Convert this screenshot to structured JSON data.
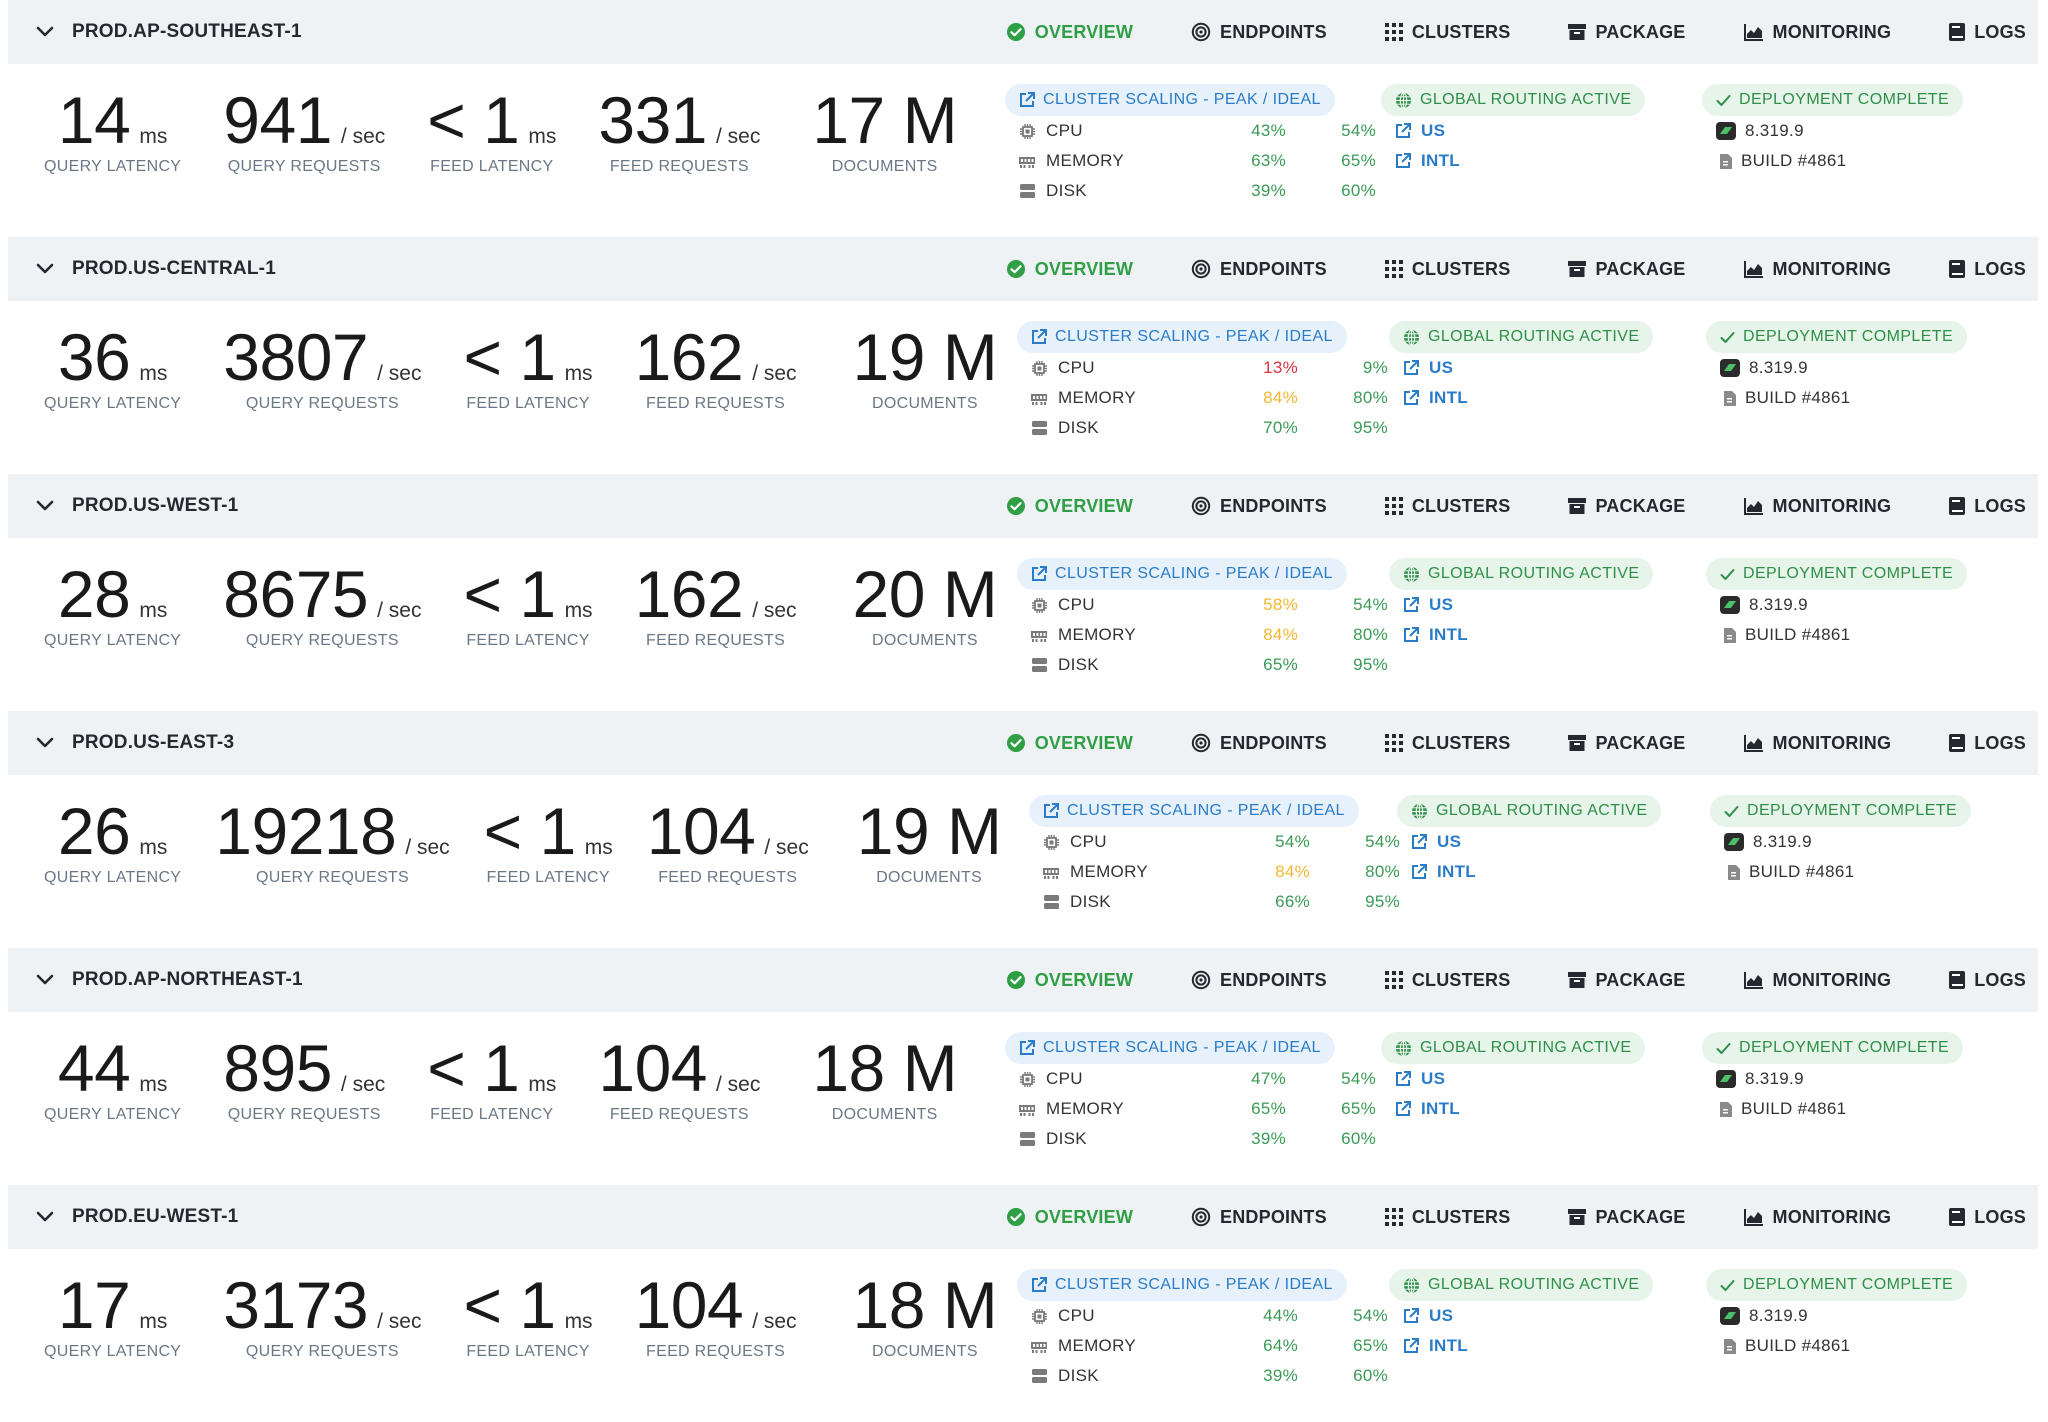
{
  "colors": {
    "accent_green": "#2f9e44",
    "link_blue": "#2a7cc8",
    "warn_red": "#d9363e",
    "warn_yellow": "#f5b630",
    "header_bg": "#eef2f5"
  },
  "tabs": [
    {
      "label": "OVERVIEW",
      "icon": "check-circle-icon"
    },
    {
      "label": "ENDPOINTS",
      "icon": "target-icon"
    },
    {
      "label": "CLUSTERS",
      "icon": "grid-icon"
    },
    {
      "label": "PACKAGE",
      "icon": "archive-icon"
    },
    {
      "label": "MONITORING",
      "icon": "area-chart-icon"
    },
    {
      "label": "LOGS",
      "icon": "book-icon"
    }
  ],
  "labels": {
    "query_latency": "QUERY LATENCY",
    "query_requests": "QUERY REQUESTS",
    "feed_latency": "FEED LATENCY",
    "feed_requests": "FEED REQUESTS",
    "documents": "DOCUMENTS",
    "unit_ms": "ms",
    "unit_sec": "/ sec",
    "scaling_chip": "CLUSTER SCALING - PEAK / IDEAL",
    "routing_chip": "GLOBAL ROUTING  ACTIVE",
    "deploy_chip": "DEPLOYMENT  COMPLETE",
    "cpu": "CPU",
    "memory": "MEMORY",
    "disk": "DISK",
    "link_us": "US",
    "link_intl": "INTL"
  },
  "deployments": [
    {
      "name": "PROD.AP-SOUTHEAST-1",
      "query_latency": "14",
      "query_requests": "941",
      "feed_latency": "< 1",
      "feed_requests": "331",
      "documents": "17 M",
      "cpu": {
        "peak": "43%",
        "peak_status": "g",
        "ideal": "54%"
      },
      "memory": {
        "peak": "63%",
        "peak_status": "g",
        "ideal": "65%"
      },
      "disk": {
        "peak": "39%",
        "peak_status": "g",
        "ideal": "60%"
      },
      "version": "8.319.9",
      "build": "BUILD #4861"
    },
    {
      "name": "PROD.US-CENTRAL-1",
      "query_latency": "36",
      "query_requests": "3807",
      "feed_latency": "< 1",
      "feed_requests": "162",
      "documents": "19 M",
      "cpu": {
        "peak": "13%",
        "peak_status": "r",
        "ideal": "9%"
      },
      "memory": {
        "peak": "84%",
        "peak_status": "y",
        "ideal": "80%"
      },
      "disk": {
        "peak": "70%",
        "peak_status": "g",
        "ideal": "95%"
      },
      "version": "8.319.9",
      "build": "BUILD #4861"
    },
    {
      "name": "PROD.US-WEST-1",
      "query_latency": "28",
      "query_requests": "8675",
      "feed_latency": "< 1",
      "feed_requests": "162",
      "documents": "20 M",
      "cpu": {
        "peak": "58%",
        "peak_status": "y",
        "ideal": "54%"
      },
      "memory": {
        "peak": "84%",
        "peak_status": "y",
        "ideal": "80%"
      },
      "disk": {
        "peak": "65%",
        "peak_status": "g",
        "ideal": "95%"
      },
      "version": "8.319.9",
      "build": "BUILD #4861"
    },
    {
      "name": "PROD.US-EAST-3",
      "query_latency": "26",
      "query_requests": "19218",
      "feed_latency": "< 1",
      "feed_requests": "104",
      "documents": "19 M",
      "cpu": {
        "peak": "54%",
        "peak_status": "g",
        "ideal": "54%"
      },
      "memory": {
        "peak": "84%",
        "peak_status": "y",
        "ideal": "80%"
      },
      "disk": {
        "peak": "66%",
        "peak_status": "g",
        "ideal": "95%"
      },
      "version": "8.319.9",
      "build": "BUILD #4861"
    },
    {
      "name": "PROD.AP-NORTHEAST-1",
      "query_latency": "44",
      "query_requests": "895",
      "feed_latency": "< 1",
      "feed_requests": "104",
      "documents": "18 M",
      "cpu": {
        "peak": "47%",
        "peak_status": "g",
        "ideal": "54%"
      },
      "memory": {
        "peak": "65%",
        "peak_status": "g",
        "ideal": "65%"
      },
      "disk": {
        "peak": "39%",
        "peak_status": "g",
        "ideal": "60%"
      },
      "version": "8.319.9",
      "build": "BUILD #4861"
    },
    {
      "name": "PROD.EU-WEST-1",
      "query_latency": "17",
      "query_requests": "3173",
      "feed_latency": "< 1",
      "feed_requests": "104",
      "documents": "18 M",
      "cpu": {
        "peak": "44%",
        "peak_status": "g",
        "ideal": "54%"
      },
      "memory": {
        "peak": "64%",
        "peak_status": "g",
        "ideal": "65%"
      },
      "disk": {
        "peak": "39%",
        "peak_status": "g",
        "ideal": "60%"
      },
      "version": "8.319.9",
      "build": "BUILD #4861"
    }
  ]
}
